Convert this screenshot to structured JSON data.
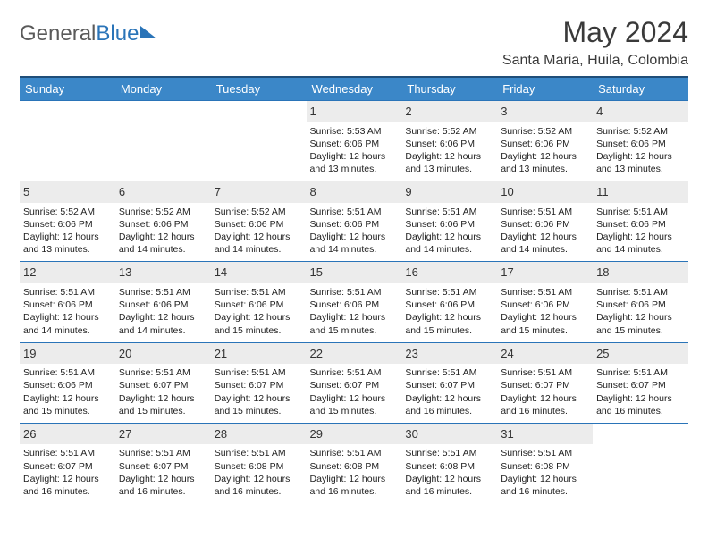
{
  "brand": {
    "part1": "General",
    "part2": "Blue"
  },
  "title": "May 2024",
  "location": "Santa Maria, Huila, Colombia",
  "colors": {
    "header_bg": "#3b87c8",
    "header_border": "#1f4e79",
    "row_border": "#2a74b8",
    "daynum_bg": "#ececec",
    "text": "#222222",
    "brand_grey": "#5a5a5a",
    "brand_blue": "#2a74b8",
    "page_bg": "#ffffff"
  },
  "typography": {
    "month_title_pt": 32,
    "location_pt": 16,
    "header_pt": 13,
    "daynum_pt": 13,
    "body_pt": 10.5
  },
  "day_headers": [
    "Sunday",
    "Monday",
    "Tuesday",
    "Wednesday",
    "Thursday",
    "Friday",
    "Saturday"
  ],
  "weeks": [
    [
      null,
      null,
      null,
      {
        "n": "1",
        "sr": "5:53 AM",
        "ss": "6:06 PM",
        "dl": "12 hours and 13 minutes."
      },
      {
        "n": "2",
        "sr": "5:52 AM",
        "ss": "6:06 PM",
        "dl": "12 hours and 13 minutes."
      },
      {
        "n": "3",
        "sr": "5:52 AM",
        "ss": "6:06 PM",
        "dl": "12 hours and 13 minutes."
      },
      {
        "n": "4",
        "sr": "5:52 AM",
        "ss": "6:06 PM",
        "dl": "12 hours and 13 minutes."
      }
    ],
    [
      {
        "n": "5",
        "sr": "5:52 AM",
        "ss": "6:06 PM",
        "dl": "12 hours and 13 minutes."
      },
      {
        "n": "6",
        "sr": "5:52 AM",
        "ss": "6:06 PM",
        "dl": "12 hours and 14 minutes."
      },
      {
        "n": "7",
        "sr": "5:52 AM",
        "ss": "6:06 PM",
        "dl": "12 hours and 14 minutes."
      },
      {
        "n": "8",
        "sr": "5:51 AM",
        "ss": "6:06 PM",
        "dl": "12 hours and 14 minutes."
      },
      {
        "n": "9",
        "sr": "5:51 AM",
        "ss": "6:06 PM",
        "dl": "12 hours and 14 minutes."
      },
      {
        "n": "10",
        "sr": "5:51 AM",
        "ss": "6:06 PM",
        "dl": "12 hours and 14 minutes."
      },
      {
        "n": "11",
        "sr": "5:51 AM",
        "ss": "6:06 PM",
        "dl": "12 hours and 14 minutes."
      }
    ],
    [
      {
        "n": "12",
        "sr": "5:51 AM",
        "ss": "6:06 PM",
        "dl": "12 hours and 14 minutes."
      },
      {
        "n": "13",
        "sr": "5:51 AM",
        "ss": "6:06 PM",
        "dl": "12 hours and 14 minutes."
      },
      {
        "n": "14",
        "sr": "5:51 AM",
        "ss": "6:06 PM",
        "dl": "12 hours and 15 minutes."
      },
      {
        "n": "15",
        "sr": "5:51 AM",
        "ss": "6:06 PM",
        "dl": "12 hours and 15 minutes."
      },
      {
        "n": "16",
        "sr": "5:51 AM",
        "ss": "6:06 PM",
        "dl": "12 hours and 15 minutes."
      },
      {
        "n": "17",
        "sr": "5:51 AM",
        "ss": "6:06 PM",
        "dl": "12 hours and 15 minutes."
      },
      {
        "n": "18",
        "sr": "5:51 AM",
        "ss": "6:06 PM",
        "dl": "12 hours and 15 minutes."
      }
    ],
    [
      {
        "n": "19",
        "sr": "5:51 AM",
        "ss": "6:06 PM",
        "dl": "12 hours and 15 minutes."
      },
      {
        "n": "20",
        "sr": "5:51 AM",
        "ss": "6:07 PM",
        "dl": "12 hours and 15 minutes."
      },
      {
        "n": "21",
        "sr": "5:51 AM",
        "ss": "6:07 PM",
        "dl": "12 hours and 15 minutes."
      },
      {
        "n": "22",
        "sr": "5:51 AM",
        "ss": "6:07 PM",
        "dl": "12 hours and 15 minutes."
      },
      {
        "n": "23",
        "sr": "5:51 AM",
        "ss": "6:07 PM",
        "dl": "12 hours and 16 minutes."
      },
      {
        "n": "24",
        "sr": "5:51 AM",
        "ss": "6:07 PM",
        "dl": "12 hours and 16 minutes."
      },
      {
        "n": "25",
        "sr": "5:51 AM",
        "ss": "6:07 PM",
        "dl": "12 hours and 16 minutes."
      }
    ],
    [
      {
        "n": "26",
        "sr": "5:51 AM",
        "ss": "6:07 PM",
        "dl": "12 hours and 16 minutes."
      },
      {
        "n": "27",
        "sr": "5:51 AM",
        "ss": "6:07 PM",
        "dl": "12 hours and 16 minutes."
      },
      {
        "n": "28",
        "sr": "5:51 AM",
        "ss": "6:08 PM",
        "dl": "12 hours and 16 minutes."
      },
      {
        "n": "29",
        "sr": "5:51 AM",
        "ss": "6:08 PM",
        "dl": "12 hours and 16 minutes."
      },
      {
        "n": "30",
        "sr": "5:51 AM",
        "ss": "6:08 PM",
        "dl": "12 hours and 16 minutes."
      },
      {
        "n": "31",
        "sr": "5:51 AM",
        "ss": "6:08 PM",
        "dl": "12 hours and 16 minutes."
      },
      null
    ]
  ],
  "labels": {
    "sunrise_prefix": "Sunrise: ",
    "sunset_prefix": "Sunset: ",
    "daylight_prefix": "Daylight: "
  }
}
